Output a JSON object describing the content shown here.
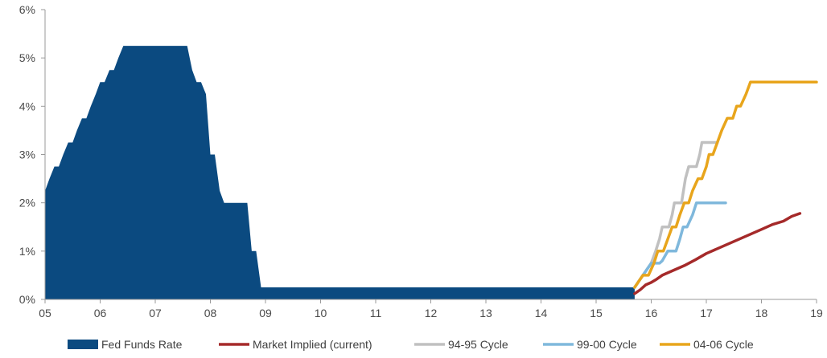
{
  "chart_data": {
    "type": "area",
    "xlim": [
      5,
      19
    ],
    "ylim": [
      0,
      6
    ],
    "x_ticks": [
      {
        "value": 5,
        "label": "05"
      },
      {
        "value": 6,
        "label": "06"
      },
      {
        "value": 7,
        "label": "07"
      },
      {
        "value": 8,
        "label": "08"
      },
      {
        "value": 9,
        "label": "09"
      },
      {
        "value": 10,
        "label": "10"
      },
      {
        "value": 11,
        "label": "11"
      },
      {
        "value": 12,
        "label": "12"
      },
      {
        "value": 13,
        "label": "13"
      },
      {
        "value": 14,
        "label": "14"
      },
      {
        "value": 15,
        "label": "15"
      },
      {
        "value": 16,
        "label": "16"
      },
      {
        "value": 17,
        "label": "17"
      },
      {
        "value": 18,
        "label": "18"
      },
      {
        "value": 19,
        "label": "19"
      }
    ],
    "y_ticks": [
      {
        "value": 0,
        "label": "0%"
      },
      {
        "value": 1,
        "label": "1%"
      },
      {
        "value": 2,
        "label": "2%"
      },
      {
        "value": 3,
        "label": "3%"
      },
      {
        "value": 4,
        "label": "4%"
      },
      {
        "value": 5,
        "label": "5%"
      },
      {
        "value": 6,
        "label": "6%"
      }
    ],
    "grid": false,
    "legend_position": "bottom",
    "series": [
      {
        "name": "Fed Funds Rate",
        "style": "area",
        "color": "#0b4a80",
        "points": [
          [
            5.0,
            2.25
          ],
          [
            5.08,
            2.5
          ],
          [
            5.17,
            2.75
          ],
          [
            5.25,
            2.75
          ],
          [
            5.33,
            3.0
          ],
          [
            5.42,
            3.25
          ],
          [
            5.5,
            3.25
          ],
          [
            5.58,
            3.5
          ],
          [
            5.67,
            3.75
          ],
          [
            5.75,
            3.75
          ],
          [
            5.83,
            4.0
          ],
          [
            5.92,
            4.25
          ],
          [
            6.0,
            4.5
          ],
          [
            6.08,
            4.5
          ],
          [
            6.17,
            4.75
          ],
          [
            6.25,
            4.75
          ],
          [
            6.33,
            5.0
          ],
          [
            6.42,
            5.25
          ],
          [
            7.58,
            5.25
          ],
          [
            7.67,
            4.75
          ],
          [
            7.75,
            4.5
          ],
          [
            7.83,
            4.5
          ],
          [
            7.92,
            4.25
          ],
          [
            8.0,
            3.0
          ],
          [
            8.08,
            3.0
          ],
          [
            8.17,
            2.25
          ],
          [
            8.25,
            2.0
          ],
          [
            8.67,
            2.0
          ],
          [
            8.75,
            1.0
          ],
          [
            8.83,
            1.0
          ],
          [
            8.92,
            0.25
          ],
          [
            15.7,
            0.25
          ]
        ]
      },
      {
        "name": "Market Implied (current)",
        "style": "line",
        "color": "#a52a2a",
        "points": [
          [
            15.7,
            0.12
          ],
          [
            15.8,
            0.2
          ],
          [
            15.9,
            0.3
          ],
          [
            16.0,
            0.35
          ],
          [
            16.1,
            0.42
          ],
          [
            16.2,
            0.5
          ],
          [
            16.4,
            0.6
          ],
          [
            16.6,
            0.7
          ],
          [
            16.8,
            0.82
          ],
          [
            17.0,
            0.95
          ],
          [
            17.2,
            1.05
          ],
          [
            17.4,
            1.15
          ],
          [
            17.6,
            1.25
          ],
          [
            17.8,
            1.35
          ],
          [
            18.0,
            1.45
          ],
          [
            18.2,
            1.55
          ],
          [
            18.4,
            1.62
          ],
          [
            18.55,
            1.72
          ],
          [
            18.7,
            1.78
          ]
        ]
      },
      {
        "name": "94-95 Cycle",
        "style": "step",
        "color": "#c0c0c0",
        "points": [
          [
            15.7,
            0.25
          ],
          [
            15.85,
            0.5
          ],
          [
            16.0,
            0.75
          ],
          [
            16.08,
            1.0
          ],
          [
            16.15,
            1.25
          ],
          [
            16.2,
            1.5
          ],
          [
            16.32,
            1.5
          ],
          [
            16.38,
            1.75
          ],
          [
            16.42,
            2.0
          ],
          [
            16.55,
            2.0
          ],
          [
            16.62,
            2.5
          ],
          [
            16.68,
            2.75
          ],
          [
            16.82,
            2.75
          ],
          [
            16.88,
            3.0
          ],
          [
            16.92,
            3.25
          ],
          [
            17.2,
            3.25
          ]
        ]
      },
      {
        "name": "99-00 Cycle",
        "style": "step",
        "color": "#7fb8dc",
        "points": [
          [
            15.7,
            0.25
          ],
          [
            15.85,
            0.5
          ],
          [
            16.0,
            0.75
          ],
          [
            16.15,
            0.75
          ],
          [
            16.2,
            0.8
          ],
          [
            16.3,
            1.0
          ],
          [
            16.45,
            1.0
          ],
          [
            16.52,
            1.25
          ],
          [
            16.58,
            1.5
          ],
          [
            16.65,
            1.5
          ],
          [
            16.75,
            1.75
          ],
          [
            16.82,
            2.0
          ],
          [
            17.35,
            2.0
          ]
        ]
      },
      {
        "name": "04-06 Cycle",
        "style": "step",
        "color": "#e8a51c",
        "points": [
          [
            15.7,
            0.25
          ],
          [
            15.85,
            0.5
          ],
          [
            15.95,
            0.5
          ],
          [
            16.05,
            0.75
          ],
          [
            16.12,
            1.0
          ],
          [
            16.22,
            1.0
          ],
          [
            16.3,
            1.25
          ],
          [
            16.38,
            1.5
          ],
          [
            16.45,
            1.5
          ],
          [
            16.52,
            1.75
          ],
          [
            16.6,
            2.0
          ],
          [
            16.68,
            2.0
          ],
          [
            16.75,
            2.25
          ],
          [
            16.85,
            2.5
          ],
          [
            16.92,
            2.5
          ],
          [
            17.0,
            2.75
          ],
          [
            17.05,
            3.0
          ],
          [
            17.12,
            3.0
          ],
          [
            17.2,
            3.25
          ],
          [
            17.28,
            3.5
          ],
          [
            17.38,
            3.75
          ],
          [
            17.48,
            3.75
          ],
          [
            17.55,
            4.0
          ],
          [
            17.62,
            4.0
          ],
          [
            17.72,
            4.25
          ],
          [
            17.8,
            4.5
          ],
          [
            19.0,
            4.5
          ]
        ]
      }
    ]
  }
}
